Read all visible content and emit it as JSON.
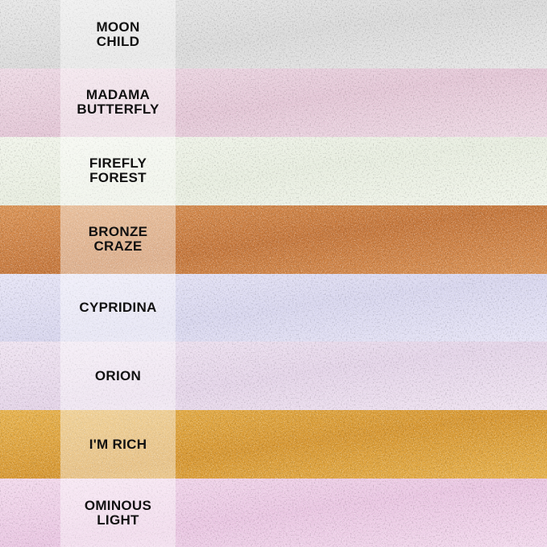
{
  "swatches": [
    {
      "name": "MOON\nCHILD",
      "color": "#d9d9d9",
      "highlight": "#f4f4f4"
    },
    {
      "name": "MADAMA\nBUTTERFLY",
      "color": "#e3c6d6",
      "highlight": "#f8eef4"
    },
    {
      "name": "FIREFLY\nFOREST",
      "color": "#e8ede0",
      "highlight": "#fbfcf6"
    },
    {
      "name": "BRONZE\nCRAZE",
      "color": "#c4753a",
      "highlight": "#f0b070"
    },
    {
      "name": "CYPRIDINA",
      "color": "#d8d6ee",
      "highlight": "#f6f4ff"
    },
    {
      "name": "ORION",
      "color": "#e4d4e8",
      "highlight": "#fbf4fb"
    },
    {
      "name": "I'M RICH",
      "color": "#d69630",
      "highlight": "#f8cf6a"
    },
    {
      "name": "OMINOUS\nLIGHT",
      "color": "#e9c6e2",
      "highlight": "#fbeef8"
    }
  ]
}
